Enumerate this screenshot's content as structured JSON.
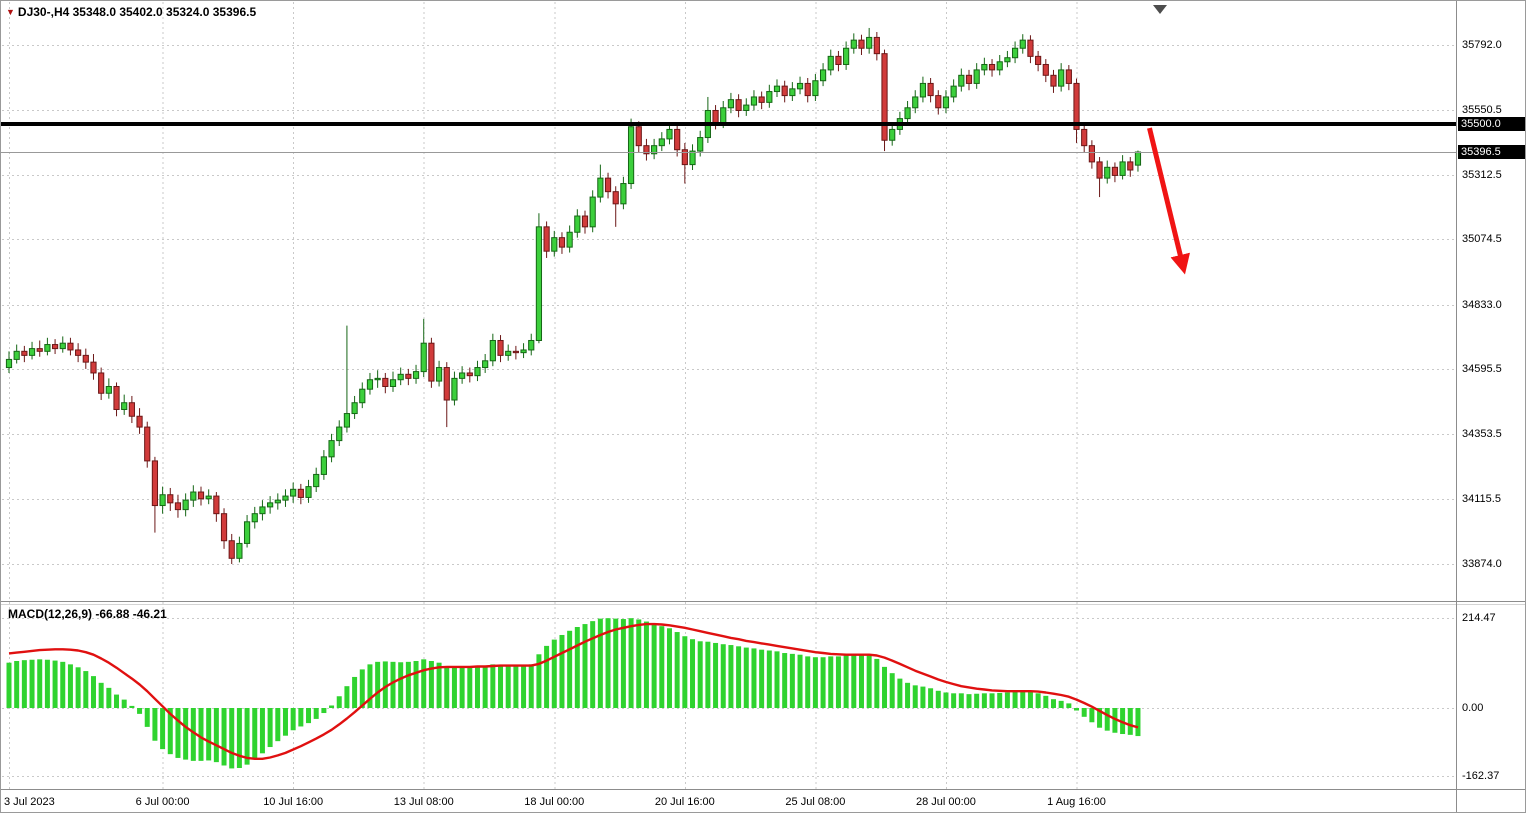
{
  "header": {
    "title": "DJ30-,H4 35348.0 35402.0 35324.0 35396.5"
  },
  "macd_label": "MACD(12,26,9) -66.88 -46.21",
  "colors": {
    "bull_fill": "#3ccf3c",
    "bull_stroke": "#156615",
    "bear_fill": "#d13b3b",
    "bear_stroke": "#6b1717",
    "grid": "#c9c9c9",
    "separator": "#8c8c8c",
    "macd_hist": "#2fd32f",
    "macd_signal": "#e01010",
    "hline": "#000000",
    "bid_line": "#999999",
    "arrow": "#f01414",
    "badge_bg": "#000000",
    "badge_fg": "#ffffff",
    "axis_text": "#000000",
    "symbol_triangle": "#b01212",
    "shift_marker": "#4d4d4d"
  },
  "chart_data": {
    "type": "candlestick",
    "symbol": "DJ30-",
    "timeframe": "H4",
    "last_bar": {
      "open": 35348.0,
      "high": 35402.0,
      "low": 35324.0,
      "close": 35396.5
    },
    "price_axis_labels": [
      35792.0,
      35550.5,
      35312.5,
      35074.5,
      34833.0,
      34595.5,
      34353.5,
      34115.5,
      33874.0
    ],
    "horizontal_line": 35500.0,
    "current_price": 35396.5,
    "time_axis": [
      {
        "i": 0,
        "label": "3 Jul 2023"
      },
      {
        "i": 20,
        "label": "6 Jul 00:00"
      },
      {
        "i": 37,
        "label": "10 Jul 16:00"
      },
      {
        "i": 54,
        "label": "13 Jul 08:00"
      },
      {
        "i": 71,
        "label": "18 Jul 00:00"
      },
      {
        "i": 88,
        "label": "20 Jul 16:00"
      },
      {
        "i": 105,
        "label": "25 Jul 08:00"
      },
      {
        "i": 122,
        "label": "28 Jul 00:00"
      },
      {
        "i": 139,
        "label": "1 Aug 16:00"
      }
    ],
    "candles": [
      [
        34600,
        34660,
        34580,
        34630
      ],
      [
        34630,
        34685,
        34615,
        34660
      ],
      [
        34660,
        34680,
        34620,
        34645
      ],
      [
        34645,
        34695,
        34630,
        34670
      ],
      [
        34670,
        34700,
        34640,
        34660
      ],
      [
        34660,
        34710,
        34645,
        34685
      ],
      [
        34685,
        34705,
        34650,
        34670
      ],
      [
        34670,
        34715,
        34655,
        34690
      ],
      [
        34690,
        34710,
        34645,
        34665
      ],
      [
        34665,
        34690,
        34620,
        34645
      ],
      [
        34645,
        34670,
        34595,
        34620
      ],
      [
        34620,
        34650,
        34555,
        34580
      ],
      [
        34580,
        34600,
        34480,
        34505
      ],
      [
        34505,
        34560,
        34485,
        34530
      ],
      [
        34530,
        34545,
        34420,
        34445
      ],
      [
        34445,
        34500,
        34425,
        34470
      ],
      [
        34470,
        34495,
        34395,
        34420
      ],
      [
        34420,
        34450,
        34355,
        34380
      ],
      [
        34380,
        34400,
        34230,
        34255
      ],
      [
        34255,
        34270,
        33990,
        34090
      ],
      [
        34090,
        34160,
        34060,
        34130
      ],
      [
        34130,
        34155,
        34070,
        34100
      ],
      [
        34100,
        34130,
        34045,
        34075
      ],
      [
        34075,
        34135,
        34050,
        34110
      ],
      [
        34110,
        34165,
        34085,
        34140
      ],
      [
        34140,
        34160,
        34090,
        34115
      ],
      [
        34115,
        34150,
        34095,
        34125
      ],
      [
        34125,
        34140,
        34030,
        34060
      ],
      [
        34060,
        34080,
        33930,
        33960
      ],
      [
        33960,
        33985,
        33874,
        33895
      ],
      [
        33895,
        33975,
        33880,
        33950
      ],
      [
        33950,
        34055,
        33935,
        34030
      ],
      [
        34030,
        34085,
        34005,
        34060
      ],
      [
        34060,
        34110,
        34035,
        34085
      ],
      [
        34085,
        34125,
        34060,
        34100
      ],
      [
        34100,
        34135,
        34075,
        34110
      ],
      [
        34110,
        34150,
        34085,
        34125
      ],
      [
        34125,
        34175,
        34100,
        34150
      ],
      [
        34150,
        34170,
        34095,
        34120
      ],
      [
        34120,
        34185,
        34100,
        34160
      ],
      [
        34160,
        34230,
        34140,
        34205
      ],
      [
        34205,
        34295,
        34185,
        34270
      ],
      [
        34270,
        34355,
        34250,
        34330
      ],
      [
        34330,
        34405,
        34310,
        34380
      ],
      [
        34380,
        34755,
        34360,
        34430
      ],
      [
        34430,
        34495,
        34410,
        34470
      ],
      [
        34470,
        34545,
        34450,
        34520
      ],
      [
        34520,
        34580,
        34500,
        34555
      ],
      [
        34555,
        34590,
        34525,
        34560
      ],
      [
        34560,
        34580,
        34505,
        34530
      ],
      [
        34530,
        34585,
        34510,
        34555
      ],
      [
        34555,
        34600,
        34535,
        34575
      ],
      [
        34575,
        34595,
        34535,
        34560
      ],
      [
        34560,
        34610,
        34540,
        34585
      ],
      [
        34585,
        34780,
        34565,
        34690
      ],
      [
        34690,
        34710,
        34525,
        34550
      ],
      [
        34550,
        34625,
        34530,
        34600
      ],
      [
        34600,
        34620,
        34380,
        34480
      ],
      [
        34480,
        34585,
        34460,
        34560
      ],
      [
        34560,
        34605,
        34540,
        34580
      ],
      [
        34580,
        34600,
        34545,
        34570
      ],
      [
        34570,
        34625,
        34550,
        34600
      ],
      [
        34600,
        34650,
        34580,
        34625
      ],
      [
        34625,
        34725,
        34605,
        34700
      ],
      [
        34700,
        34720,
        34620,
        34645
      ],
      [
        34645,
        34685,
        34625,
        34660
      ],
      [
        34660,
        34680,
        34630,
        34655
      ],
      [
        34655,
        34690,
        34635,
        34665
      ],
      [
        34665,
        34725,
        34645,
        34700
      ],
      [
        34700,
        35170,
        34690,
        35120
      ],
      [
        35120,
        35140,
        35005,
        35030
      ],
      [
        35030,
        35105,
        35010,
        35080
      ],
      [
        35080,
        35100,
        35020,
        35045
      ],
      [
        35045,
        35125,
        35025,
        35100
      ],
      [
        35100,
        35185,
        35080,
        35160
      ],
      [
        35160,
        35180,
        35095,
        35120
      ],
      [
        35120,
        35255,
        35100,
        35230
      ],
      [
        35230,
        35350,
        35210,
        35300
      ],
      [
        35300,
        35320,
        35225,
        35250
      ],
      [
        35250,
        35270,
        35120,
        35205
      ],
      [
        35205,
        35305,
        35185,
        35280
      ],
      [
        35280,
        35520,
        35260,
        35490
      ],
      [
        35490,
        35510,
        35395,
        35420
      ],
      [
        35420,
        35445,
        35365,
        35390
      ],
      [
        35390,
        35445,
        35370,
        35420
      ],
      [
        35420,
        35470,
        35400,
        35445
      ],
      [
        35445,
        35505,
        35425,
        35480
      ],
      [
        35480,
        35500,
        35380,
        35405
      ],
      [
        35405,
        35430,
        35280,
        35350
      ],
      [
        35350,
        35425,
        35330,
        35400
      ],
      [
        35400,
        35475,
        35380,
        35450
      ],
      [
        35450,
        35600,
        35430,
        35550
      ],
      [
        35550,
        35570,
        35480,
        35505
      ],
      [
        35505,
        35585,
        35485,
        35560
      ],
      [
        35560,
        35615,
        35540,
        35590
      ],
      [
        35590,
        35610,
        35525,
        35550
      ],
      [
        35550,
        35595,
        35530,
        35570
      ],
      [
        35570,
        35625,
        35550,
        35600
      ],
      [
        35600,
        35620,
        35555,
        35580
      ],
      [
        35580,
        35645,
        35560,
        35620
      ],
      [
        35620,
        35665,
        35600,
        35640
      ],
      [
        35640,
        35660,
        35580,
        35605
      ],
      [
        35605,
        35655,
        35585,
        35630
      ],
      [
        35630,
        35675,
        35610,
        35650
      ],
      [
        35650,
        35670,
        35580,
        35605
      ],
      [
        35605,
        35685,
        35585,
        35660
      ],
      [
        35660,
        35725,
        35640,
        35700
      ],
      [
        35700,
        35775,
        35680,
        35750
      ],
      [
        35750,
        35770,
        35695,
        35720
      ],
      [
        35720,
        35805,
        35700,
        35780
      ],
      [
        35780,
        35835,
        35760,
        35810
      ],
      [
        35810,
        35830,
        35755,
        35780
      ],
      [
        35780,
        35855,
        35760,
        35820
      ],
      [
        35820,
        35840,
        35735,
        35760
      ],
      [
        35760,
        35775,
        35400,
        35440
      ],
      [
        35440,
        35505,
        35420,
        35480
      ],
      [
        35480,
        35545,
        35460,
        35520
      ],
      [
        35520,
        35585,
        35500,
        35560
      ],
      [
        35560,
        35625,
        35540,
        35600
      ],
      [
        35600,
        35675,
        35580,
        35650
      ],
      [
        35650,
        35670,
        35580,
        35605
      ],
      [
        35605,
        35625,
        35535,
        35560
      ],
      [
        35560,
        35625,
        35540,
        35600
      ],
      [
        35600,
        35665,
        35580,
        35640
      ],
      [
        35640,
        35705,
        35620,
        35680
      ],
      [
        35680,
        35700,
        35625,
        35650
      ],
      [
        35650,
        35725,
        35630,
        35700
      ],
      [
        35700,
        35745,
        35680,
        35720
      ],
      [
        35720,
        35740,
        35675,
        35700
      ],
      [
        35700,
        35755,
        35680,
        35730
      ],
      [
        35730,
        35770,
        35710,
        35745
      ],
      [
        35745,
        35805,
        35725,
        35780
      ],
      [
        35780,
        35832,
        35760,
        35810
      ],
      [
        35810,
        35828,
        35725,
        35750
      ],
      [
        35750,
        35770,
        35695,
        35720
      ],
      [
        35720,
        35740,
        35655,
        35680
      ],
      [
        35680,
        35700,
        35615,
        35640
      ],
      [
        35640,
        35725,
        35620,
        35700
      ],
      [
        35700,
        35718,
        35625,
        35650
      ],
      [
        35650,
        35668,
        35430,
        35480
      ],
      [
        35480,
        35500,
        35395,
        35420
      ],
      [
        35420,
        35440,
        35335,
        35360
      ],
      [
        35360,
        35378,
        35230,
        35300
      ],
      [
        35300,
        35365,
        35280,
        35340
      ],
      [
        35340,
        35358,
        35285,
        35310
      ],
      [
        35310,
        35385,
        35295,
        35360
      ],
      [
        35360,
        35378,
        35305,
        35330
      ],
      [
        35348,
        35402,
        35324,
        35396.5
      ]
    ],
    "macd": {
      "params": "MACD(12,26,9)",
      "macd_value": -66.88,
      "signal_value": -46.21,
      "axis_labels": [
        214.47,
        0.0,
        -162.37
      ],
      "histogram": [
        108,
        112,
        114,
        115,
        116,
        115,
        113,
        110,
        104,
        97,
        88,
        76,
        60,
        48,
        32,
        20,
        5,
        -14,
        -45,
        -78,
        -98,
        -110,
        -119,
        -123,
        -126,
        -126,
        -125,
        -129,
        -137,
        -144,
        -143,
        -135,
        -122,
        -108,
        -93,
        -79,
        -66,
        -53,
        -44,
        -36,
        -26,
        -12,
        6,
        28,
        52,
        74,
        92,
        104,
        110,
        111,
        110,
        109,
        110,
        112,
        116,
        112,
        108,
        100,
        97,
        98,
        100,
        100,
        101,
        104,
        103,
        101,
        100,
        101,
        104,
        128,
        148,
        163,
        174,
        184,
        193,
        200,
        207,
        213,
        214,
        213,
        212,
        214,
        211,
        206,
        200,
        195,
        190,
        181,
        171,
        164,
        159,
        158,
        155,
        152,
        150,
        147,
        144,
        142,
        139,
        137,
        135,
        131,
        129,
        127,
        123,
        121,
        121,
        123,
        123,
        125,
        127,
        126,
        125,
        117,
        98,
        83,
        70,
        60,
        54,
        51,
        47,
        41,
        37,
        35,
        35,
        33,
        34,
        35,
        35,
        36,
        37,
        39,
        41,
        39,
        35,
        29,
        21,
        17,
        11,
        -6,
        -21,
        -34,
        -47,
        -54,
        -59,
        -62,
        -64,
        -66.88
      ],
      "signal": [
        130,
        132,
        134,
        136,
        138,
        139,
        140,
        140,
        139,
        137,
        133,
        127,
        118,
        108,
        96,
        83,
        70,
        56,
        40,
        22,
        4,
        -14,
        -30,
        -45,
        -58,
        -70,
        -80,
        -89,
        -98,
        -107,
        -114,
        -119,
        -121,
        -121,
        -118,
        -113,
        -107,
        -99,
        -91,
        -82,
        -73,
        -63,
        -52,
        -39,
        -25,
        -10,
        6,
        22,
        37,
        50,
        61,
        70,
        78,
        84,
        90,
        94,
        97,
        98,
        98,
        98,
        98,
        99,
        99,
        100,
        101,
        101,
        101,
        101,
        101,
        105,
        113,
        122,
        131,
        140,
        149,
        158,
        166,
        174,
        181,
        187,
        191,
        195,
        198,
        200,
        200,
        199,
        197,
        194,
        191,
        187,
        183,
        179,
        175,
        171,
        167,
        164,
        160,
        157,
        154,
        151,
        148,
        145,
        142,
        139,
        136,
        133,
        131,
        129,
        128,
        127,
        127,
        127,
        127,
        125,
        120,
        113,
        105,
        97,
        89,
        82,
        75,
        68,
        62,
        57,
        52,
        49,
        46,
        44,
        42,
        41,
        40,
        40,
        40,
        40,
        39,
        37,
        34,
        31,
        27,
        20,
        12,
        3,
        -7,
        -17,
        -26,
        -34,
        -41,
        -46.21
      ]
    },
    "arrow": {
      "from": {
        "i": 148.5,
        "price": 35485
      },
      "to": {
        "i": 152.6,
        "price": 35005
      }
    }
  }
}
